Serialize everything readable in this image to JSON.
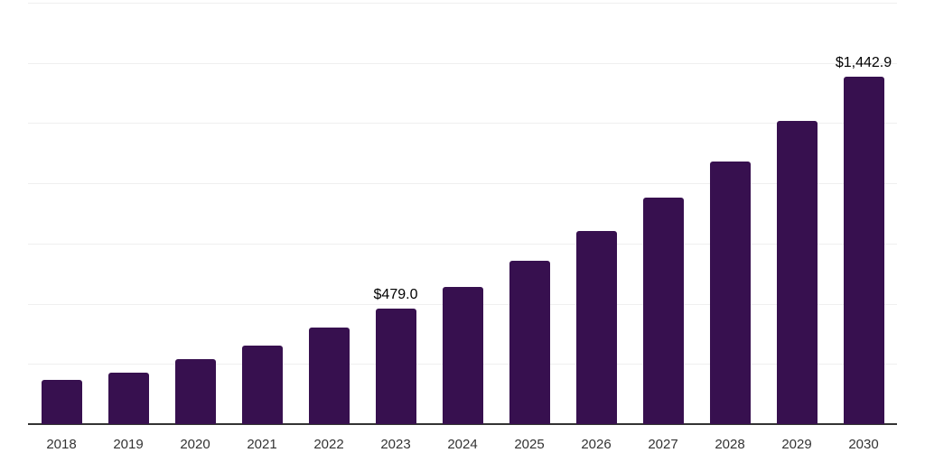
{
  "chart_data": {
    "type": "bar",
    "title": "",
    "xlabel": "",
    "ylabel": "",
    "categories": [
      "2018",
      "2019",
      "2020",
      "2021",
      "2022",
      "2023",
      "2024",
      "2025",
      "2026",
      "2027",
      "2028",
      "2029",
      "2030"
    ],
    "values": [
      184,
      212,
      268,
      326,
      401,
      479.0,
      570,
      678,
      802,
      939,
      1091,
      1261,
      1442.9
    ],
    "value_labels": [
      "",
      "",
      "",
      "",
      "",
      "$479.0",
      "",
      "",
      "",
      "",
      "",
      "",
      "$1,442.9"
    ],
    "ylim": [
      0,
      1750
    ],
    "grid_interval": 250,
    "grid": "horizontal-only",
    "legend": "none",
    "y_tick_labels_visible": false,
    "colors": {
      "bar": "#37104F",
      "axis": "#333333",
      "gridline": "#efefef",
      "tick_label": "#333333",
      "value_label": "#000000",
      "background": "#ffffff"
    }
  }
}
